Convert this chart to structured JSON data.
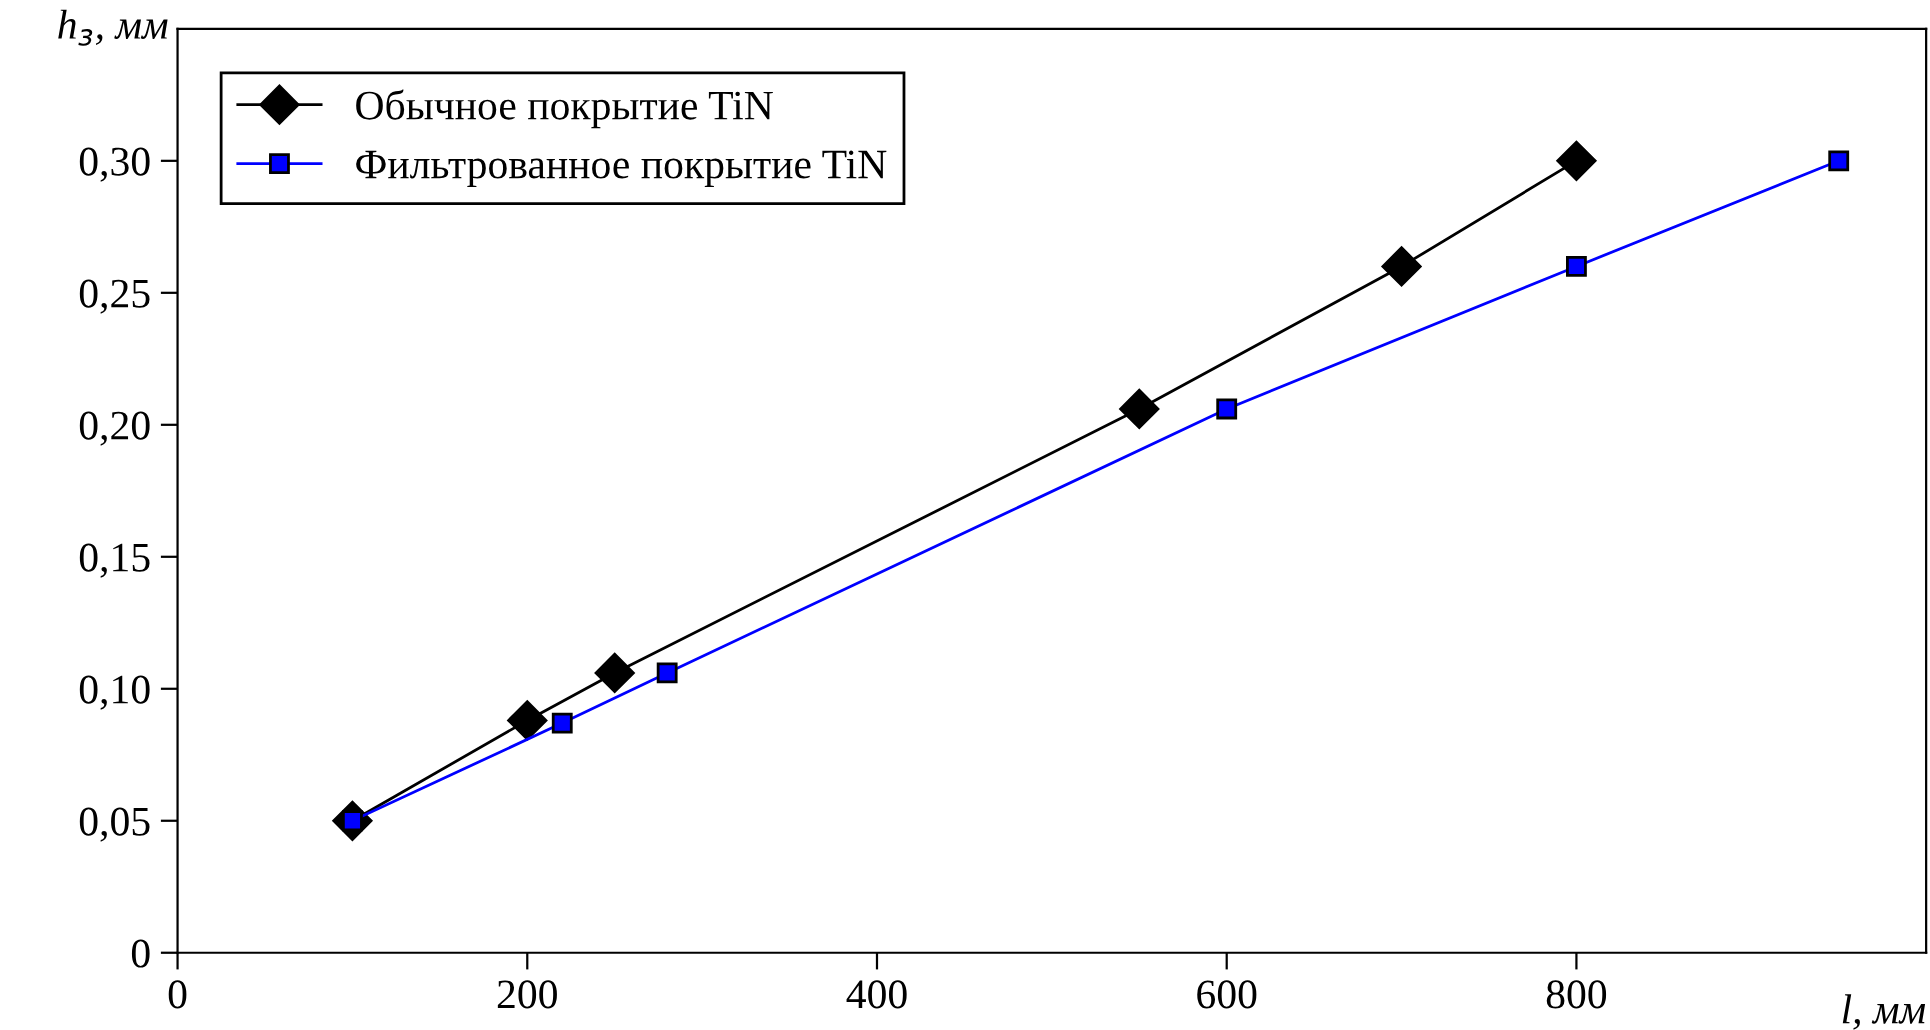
{
  "chart_data": {
    "type": "line",
    "xlabel": "l, мм",
    "ylabel": "h$_{з}$, мм",
    "xlim": [
      0,
      1000
    ],
    "xticks": [
      0,
      200,
      400,
      600,
      800
    ],
    "ylim": [
      0,
      0.35
    ],
    "yticks": [
      {
        "value": 0,
        "label": "0"
      },
      {
        "value": 0.05,
        "label": "0,05"
      },
      {
        "value": 0.1,
        "label": "0,10"
      },
      {
        "value": 0.15,
        "label": "0,15"
      },
      {
        "value": 0.2,
        "label": "0,20"
      },
      {
        "value": 0.25,
        "label": "0,25"
      },
      {
        "value": 0.3,
        "label": "0,30"
      }
    ],
    "grid": false,
    "legend": "top left",
    "series": [
      {
        "name": "Обычное покрытие TiN",
        "color": "#000000",
        "marker": "diamond",
        "x": [
          100,
          200,
          250,
          550,
          700,
          800
        ],
        "values": [
          0.05,
          0.088,
          0.106,
          0.206,
          0.26,
          0.3
        ]
      },
      {
        "name": "Фильтрованное покрытие TiN",
        "color": "#0000ff",
        "marker": "square",
        "x": [
          100,
          220,
          280,
          600,
          800,
          950
        ],
        "values": [
          0.05,
          0.087,
          0.106,
          0.206,
          0.26,
          0.3
        ]
      }
    ]
  }
}
